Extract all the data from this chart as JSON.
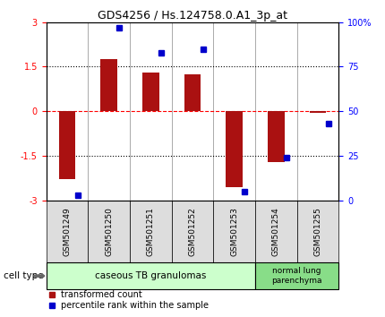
{
  "title": "GDS4256 / Hs.124758.0.A1_3p_at",
  "samples": [
    "GSM501249",
    "GSM501250",
    "GSM501251",
    "GSM501252",
    "GSM501253",
    "GSM501254",
    "GSM501255"
  ],
  "bar_values": [
    -2.3,
    1.75,
    1.3,
    1.25,
    -2.55,
    -1.7,
    -0.05
  ],
  "dot_values": [
    3.0,
    97.0,
    83.0,
    85.0,
    5.0,
    24.0,
    43.0
  ],
  "bar_color": "#aa1111",
  "dot_color": "#0000cc",
  "ylim_left": [
    -3,
    3
  ],
  "ylim_right": [
    0,
    100
  ],
  "yticks_left": [
    -3,
    -1.5,
    0,
    1.5,
    3
  ],
  "yticks_right": [
    0,
    25,
    50,
    75,
    100
  ],
  "ytick_labels_left": [
    "-3",
    "-1.5",
    "0",
    "1.5",
    "3"
  ],
  "ytick_labels_right": [
    "0",
    "25",
    "50",
    "75",
    "100%"
  ],
  "cell_type_label": "cell type",
  "group1_label": "caseous TB granulomas",
  "group2_label": "normal lung\nparenchyma",
  "group1_count": 5,
  "group2_count": 2,
  "group1_color": "#ccffcc",
  "group2_color": "#88dd88",
  "legend_bar_label": "transformed count",
  "legend_dot_label": "percentile rank within the sample",
  "tick_label_bg": "#dddddd",
  "figsize": [
    4.3,
    3.54
  ],
  "dpi": 100
}
